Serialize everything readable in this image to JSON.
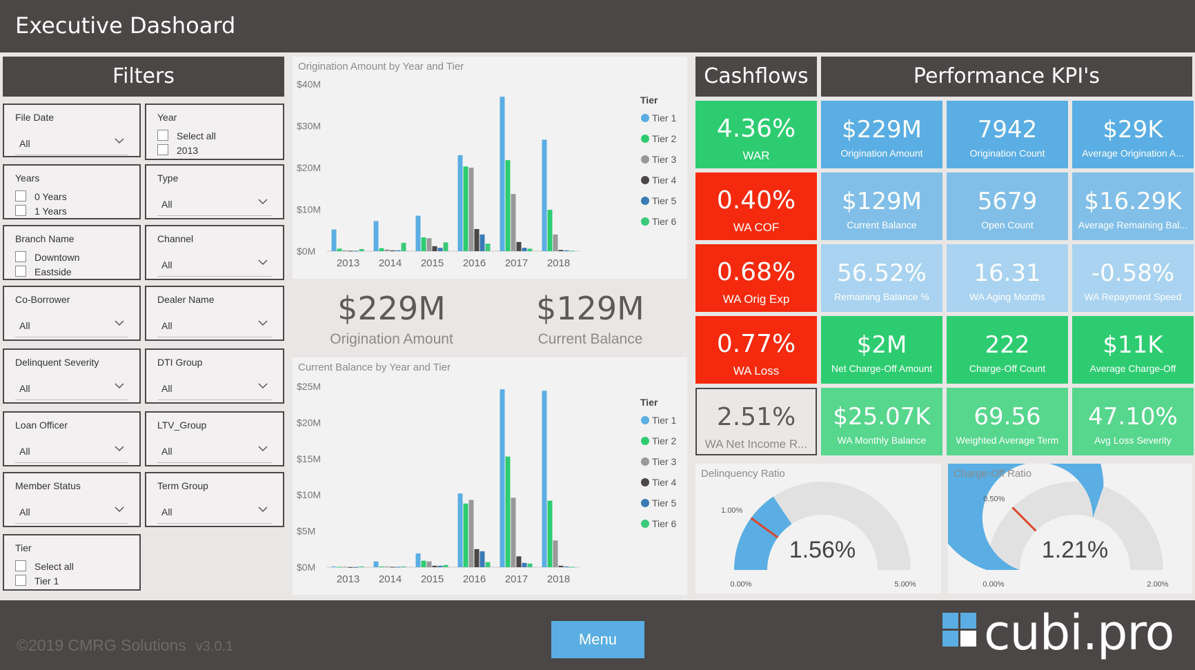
{
  "app": {
    "title": "Executive Dashoard"
  },
  "filters": {
    "title": "Filters",
    "file_date": {
      "label": "File Date",
      "value": "All"
    },
    "year": {
      "label": "Year",
      "options": [
        "Select all",
        "2013"
      ]
    },
    "years": {
      "label": "Years",
      "options": [
        "0 Years",
        "1 Years"
      ]
    },
    "type": {
      "label": "Type",
      "value": "All"
    },
    "branch_name": {
      "label": "Branch Name",
      "options": [
        "Downtown",
        "Eastside"
      ]
    },
    "channel": {
      "label": "Channel",
      "value": "All"
    },
    "co_borrower": {
      "label": "Co-Borrower",
      "value": "All"
    },
    "dealer_name": {
      "label": "Dealer Name",
      "value": "All"
    },
    "delinquent_severity": {
      "label": "Delinquent Severity",
      "value": "All"
    },
    "dti_group": {
      "label": "DTI Group",
      "value": "All"
    },
    "loan_officer": {
      "label": "Loan Officer",
      "value": "All"
    },
    "ltv_group": {
      "label": "LTV_Group",
      "value": "All"
    },
    "member_status": {
      "label": "Member Status",
      "value": "All"
    },
    "term_group": {
      "label": "Term Group",
      "value": "All"
    },
    "tier": {
      "label": "Tier",
      "options": [
        "Select all",
        "Tier 1"
      ]
    }
  },
  "summary": {
    "origination_amount": {
      "value": "$229M",
      "caption": "Origination Amount"
    },
    "current_balance": {
      "value": "$129M",
      "caption": "Current Balance"
    }
  },
  "cashflows": {
    "title": "Cashflows",
    "tiles": [
      {
        "value": "4.36%",
        "caption": "WAR",
        "color": "#2ecc71"
      },
      {
        "value": "0.40%",
        "caption": "WA COF",
        "color": "#f5290d"
      },
      {
        "value": "0.68%",
        "caption": "WA Orig Exp",
        "color": "#f5290d"
      },
      {
        "value": "0.77%",
        "caption": "WA Loss",
        "color": "#f5290d"
      },
      {
        "value": "2.51%",
        "caption": "WA Net Income R...",
        "color": "#eae8e7"
      }
    ]
  },
  "kpis": {
    "title": "Performance KPI's",
    "tiles": [
      {
        "value": "$229M",
        "caption": "Origination Amount",
        "color": "#5aaee3"
      },
      {
        "value": "7942",
        "caption": "Origination Count",
        "color": "#5aaee3"
      },
      {
        "value": "$29K",
        "caption": "Average Origination A...",
        "color": "#5aaee3"
      },
      {
        "value": "$129M",
        "caption": "Current Balance",
        "color": "#81bfe8"
      },
      {
        "value": "5679",
        "caption": "Open Count",
        "color": "#81bfe8"
      },
      {
        "value": "$16.29K",
        "caption": "Average Remaining Bal...",
        "color": "#81bfe8"
      },
      {
        "value": "56.52%",
        "caption": "Remaining Balance %",
        "color": "#a9d3f0"
      },
      {
        "value": "16.31",
        "caption": "WA Aging Months",
        "color": "#a9d3f0"
      },
      {
        "value": "-0.58%",
        "caption": "WA Repayment Speed",
        "color": "#a9d3f0"
      },
      {
        "value": "$2M",
        "caption": "Net Charge-Off Amount",
        "color": "#2ecc71"
      },
      {
        "value": "222",
        "caption": "Charge-Off Count",
        "color": "#2ecc71"
      },
      {
        "value": "$11K",
        "caption": "Average Charge-Off",
        "color": "#2ecc71"
      },
      {
        "value": "$25.07K",
        "caption": "WA Monthly Balance",
        "color": "#57d68d"
      },
      {
        "value": "69.56",
        "caption": "Weighted Average Term",
        "color": "#57d68d"
      },
      {
        "value": "47.10%",
        "caption": "Avg Loss Severity",
        "color": "#57d68d"
      }
    ]
  },
  "gauges": [
    {
      "title": "Delinquency Ratio",
      "value_label": "1.56%",
      "value": 1.56,
      "min": 0,
      "max": 5,
      "target": 1.0,
      "min_label": "0.00%",
      "max_label": "5.00%",
      "target_label": "1.00%"
    },
    {
      "title": "Charge-Off Ratio",
      "value_label": "1.21%",
      "value": 1.21,
      "min": 0,
      "max": 2,
      "target": 0.5,
      "min_label": "0.00%",
      "max_label": "2.00%",
      "target_label": "0.50%"
    }
  ],
  "colors": {
    "tier1": "#5aaee3",
    "tier2": "#2ecc71",
    "tier3": "#999999",
    "tier4": "#4a4746",
    "tier5": "#3a7bb5",
    "tier6": "#3bc97b",
    "gauge_fill": "#5aaee3",
    "gauge_bg": "#e2e1e1",
    "target": "#d9472b"
  },
  "chart_data": [
    {
      "type": "bar",
      "title": "Origination Amount by Year and Tier",
      "legend_title": "Tier",
      "categories": [
        "2013",
        "2014",
        "2015",
        "2016",
        "2017",
        "2018"
      ],
      "yticks": [
        "$0M",
        "$10M",
        "$20M",
        "$30M",
        "$40M"
      ],
      "ylim": [
        0,
        40
      ],
      "series": [
        {
          "name": "Tier 1",
          "values": [
            5.2,
            7.2,
            8.5,
            23.0,
            37.0,
            26.7
          ]
        },
        {
          "name": "Tier 2",
          "values": [
            0.6,
            0.7,
            3.3,
            20.3,
            21.8,
            9.9
          ]
        },
        {
          "name": "Tier 3",
          "values": [
            0.2,
            0.4,
            3.1,
            20.0,
            13.7,
            4.0
          ]
        },
        {
          "name": "Tier 4",
          "values": [
            0.1,
            0.2,
            1.2,
            5.3,
            2.2,
            0.3
          ]
        },
        {
          "name": "Tier 5",
          "values": [
            0.1,
            0.2,
            0.8,
            4.0,
            0.8,
            0.2
          ]
        },
        {
          "name": "Tier 6",
          "values": [
            0.5,
            2.0,
            2.1,
            1.8,
            0.6,
            0.1
          ]
        }
      ],
      "legend": "right"
    },
    {
      "type": "bar",
      "title": "Current Balance by Year and Tier",
      "legend_title": "Tier",
      "categories": [
        "2013",
        "2014",
        "2015",
        "2016",
        "2017",
        "2018"
      ],
      "yticks": [
        "$0M",
        "$5M",
        "$10M",
        "$15M",
        "$20M",
        "$25M"
      ],
      "ylim": [
        0,
        25
      ],
      "series": [
        {
          "name": "Tier 1",
          "values": [
            0.1,
            0.8,
            1.9,
            10.2,
            24.6,
            24.4
          ]
        },
        {
          "name": "Tier 2",
          "values": [
            0.05,
            0.1,
            0.9,
            8.8,
            15.3,
            9.2
          ]
        },
        {
          "name": "Tier 3",
          "values": [
            0.05,
            0.1,
            0.8,
            9.3,
            9.6,
            3.7
          ]
        },
        {
          "name": "Tier 4",
          "values": [
            0.02,
            0.05,
            0.2,
            2.5,
            1.5,
            0.2
          ]
        },
        {
          "name": "Tier 5",
          "values": [
            0.02,
            0.05,
            0.2,
            2.2,
            0.6,
            0.1
          ]
        },
        {
          "name": "Tier 6",
          "values": [
            0.1,
            0.1,
            0.3,
            0.7,
            0.5,
            0.05
          ]
        }
      ],
      "legend": "right"
    }
  ],
  "footer": {
    "copyright": "©2019 CMRG Solutions",
    "version": "v3.0.1",
    "menu_label": "Menu",
    "logo_text": "cubi.pro"
  }
}
